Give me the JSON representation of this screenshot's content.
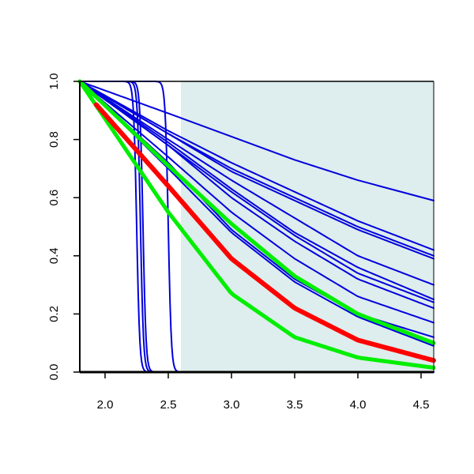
{
  "chart_data": {
    "type": "line",
    "title": "",
    "xlabel": "",
    "ylabel": "",
    "xlim": [
      1.8,
      4.6
    ],
    "ylim": [
      0.0,
      1.0
    ],
    "x_ticks": [
      "2.0",
      "2.5",
      "3.0",
      "3.5",
      "4.0",
      "4.5"
    ],
    "y_ticks": [
      "0.0",
      "0.2",
      "0.4",
      "0.6",
      "0.8",
      "1.0"
    ],
    "shaded_region": {
      "x_start": 2.6,
      "x_end": 4.6,
      "color": "#deeded"
    },
    "colors": {
      "blue": "#0000dd",
      "red": "#ff0000",
      "green": "#00ee00"
    },
    "series": [
      {
        "kind": "step",
        "color": "blue",
        "x_center": 2.25,
        "x": [
          1.8,
          4.6
        ],
        "y": [
          1.0,
          0.0
        ]
      },
      {
        "kind": "step",
        "color": "blue",
        "x_center": 2.28,
        "x": [
          1.8,
          4.6
        ],
        "y": [
          1.0,
          0.0
        ]
      },
      {
        "kind": "step",
        "color": "blue",
        "x_center": 2.3,
        "x": [
          1.8,
          4.6
        ],
        "y": [
          1.0,
          0.0
        ]
      },
      {
        "kind": "step",
        "color": "blue",
        "x_center": 2.5,
        "x": [
          1.8,
          4.6
        ],
        "y": [
          1.0,
          0.0
        ]
      },
      {
        "kind": "line",
        "color": "blue",
        "x": [
          1.8,
          2.5,
          3.0,
          3.5,
          4.0,
          4.6
        ],
        "y": [
          1.0,
          0.89,
          0.81,
          0.73,
          0.66,
          0.59
        ]
      },
      {
        "kind": "line",
        "color": "blue",
        "x": [
          1.8,
          2.5,
          3.0,
          3.5,
          4.0,
          4.6
        ],
        "y": [
          1.0,
          0.83,
          0.72,
          0.62,
          0.52,
          0.42
        ]
      },
      {
        "kind": "line",
        "color": "blue",
        "x": [
          1.8,
          2.5,
          3.0,
          3.5,
          4.0,
          4.6
        ],
        "y": [
          1.0,
          0.82,
          0.7,
          0.6,
          0.5,
          0.4
        ]
      },
      {
        "kind": "line",
        "color": "blue",
        "x": [
          1.8,
          2.5,
          3.0,
          3.5,
          4.0,
          4.6
        ],
        "y": [
          1.0,
          0.82,
          0.69,
          0.59,
          0.49,
          0.39
        ]
      },
      {
        "kind": "line",
        "color": "blue",
        "x": [
          1.8,
          2.5,
          3.0,
          3.5,
          4.0,
          4.6
        ],
        "y": [
          1.0,
          0.8,
          0.66,
          0.53,
          0.4,
          0.3
        ]
      },
      {
        "kind": "line",
        "color": "blue",
        "x": [
          1.8,
          2.5,
          3.0,
          3.5,
          4.0,
          4.6
        ],
        "y": [
          1.0,
          0.79,
          0.63,
          0.48,
          0.36,
          0.25
        ]
      },
      {
        "kind": "line",
        "color": "blue",
        "x": [
          1.8,
          2.5,
          3.0,
          3.5,
          4.0,
          4.6
        ],
        "y": [
          1.0,
          0.78,
          0.62,
          0.47,
          0.34,
          0.24
        ]
      },
      {
        "kind": "line",
        "color": "blue",
        "x": [
          1.8,
          2.5,
          3.0,
          3.5,
          4.0,
          4.6
        ],
        "y": [
          1.0,
          0.78,
          0.6,
          0.45,
          0.32,
          0.22
        ]
      },
      {
        "kind": "line",
        "color": "blue",
        "x": [
          1.8,
          2.5,
          3.0,
          3.5,
          4.0,
          4.6
        ],
        "y": [
          1.0,
          0.74,
          0.55,
          0.39,
          0.26,
          0.17
        ]
      },
      {
        "kind": "line",
        "color": "blue",
        "x": [
          1.8,
          2.5,
          3.0,
          3.5,
          4.0,
          4.6
        ],
        "y": [
          1.0,
          0.72,
          0.49,
          0.32,
          0.2,
          0.12
        ]
      },
      {
        "kind": "line",
        "color": "blue",
        "x": [
          1.8,
          2.5,
          3.0,
          3.5,
          4.0,
          4.6
        ],
        "y": [
          1.0,
          0.7,
          0.48,
          0.31,
          0.19,
          0.09
        ]
      },
      {
        "kind": "line",
        "color": "green",
        "x": [
          1.8,
          2.5,
          3.0,
          3.5,
          4.0,
          4.6
        ],
        "y": [
          1.0,
          0.71,
          0.51,
          0.33,
          0.2,
          0.1
        ]
      },
      {
        "kind": "line",
        "color": "green",
        "x": [
          1.8,
          2.5,
          3.0,
          3.5,
          4.0,
          4.6
        ],
        "y": [
          1.0,
          0.55,
          0.27,
          0.12,
          0.05,
          0.015
        ]
      },
      {
        "kind": "line",
        "color": "red",
        "x": [
          1.93,
          2.5,
          3.0,
          3.5,
          4.0,
          4.6
        ],
        "y": [
          0.92,
          0.64,
          0.39,
          0.22,
          0.11,
          0.04
        ]
      }
    ]
  }
}
